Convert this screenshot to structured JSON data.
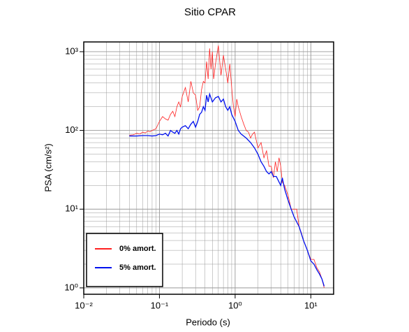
{
  "chart_data": {
    "type": "line",
    "title": "Sitio CPAR",
    "x_label": "Periodo (s)",
    "y_label": "PSA (cm/s²)",
    "log_x": true,
    "log_y": true,
    "grid": true,
    "minor_grid": true,
    "legend": "lower left",
    "xlim": [
      0.01,
      20
    ],
    "ylim": [
      0.83,
      1330
    ],
    "xticks": [
      {
        "value": 0.01,
        "label": "10⁻²"
      },
      {
        "value": 0.1,
        "label": "10⁻¹"
      },
      {
        "value": 1,
        "label": "10⁰"
      },
      {
        "value": 10,
        "label": "10¹"
      }
    ],
    "yticks": [
      {
        "value": 1,
        "label": "10⁰"
      },
      {
        "value": 10,
        "label": "10¹"
      },
      {
        "value": 100,
        "label": "10²"
      },
      {
        "value": 1000,
        "label": "10³"
      }
    ],
    "series": [
      {
        "name": "0% amort.",
        "color": "#ff2020",
        "x": [
          0.04,
          0.045,
          0.05,
          0.055,
          0.06,
          0.065,
          0.07,
          0.075,
          0.08,
          0.09,
          0.1,
          0.11,
          0.12,
          0.13,
          0.14,
          0.15,
          0.16,
          0.17,
          0.18,
          0.19,
          0.2,
          0.22,
          0.24,
          0.26,
          0.28,
          0.3,
          0.32,
          0.34,
          0.36,
          0.38,
          0.4,
          0.42,
          0.44,
          0.46,
          0.48,
          0.5,
          0.52,
          0.55,
          0.6,
          0.65,
          0.7,
          0.75,
          0.8,
          0.85,
          0.9,
          0.95,
          1.0,
          1.05,
          1.1,
          1.2,
          1.3,
          1.4,
          1.5,
          1.6,
          1.7,
          1.8,
          1.9,
          2.0,
          2.2,
          2.4,
          2.6,
          2.8,
          3.0,
          3.2,
          3.4,
          3.6,
          3.8,
          4.0,
          4.2,
          4.5,
          5.0,
          5.5,
          6.0,
          6.5,
          7,
          7.5,
          8,
          9,
          10,
          11,
          12,
          13,
          14,
          15
        ],
        "values": [
          87,
          88,
          92,
          90,
          95,
          93,
          98,
          96,
          100,
          105,
          130,
          150,
          140,
          135,
          160,
          175,
          150,
          200,
          230,
          200,
          270,
          350,
          230,
          420,
          300,
          280,
          180,
          200,
          330,
          420,
          400,
          750,
          450,
          1100,
          600,
          1000,
          450,
          700,
          1200,
          500,
          900,
          600,
          400,
          700,
          350,
          200,
          150,
          250,
          200,
          150,
          120,
          100,
          95,
          80,
          90,
          95,
          75,
          60,
          70,
          45,
          55,
          35,
          35,
          25,
          40,
          30,
          45,
          35,
          22,
          20,
          15,
          10,
          10,
          10,
          6,
          5,
          4,
          3,
          2.3,
          2.3,
          1.8,
          1.6,
          1.3,
          1.0
        ]
      },
      {
        "name": "5% amort.",
        "color": "#0010ee",
        "x": [
          0.04,
          0.05,
          0.06,
          0.07,
          0.08,
          0.09,
          0.1,
          0.11,
          0.12,
          0.13,
          0.14,
          0.15,
          0.16,
          0.17,
          0.18,
          0.19,
          0.2,
          0.22,
          0.24,
          0.26,
          0.28,
          0.3,
          0.32,
          0.34,
          0.36,
          0.38,
          0.4,
          0.42,
          0.44,
          0.46,
          0.5,
          0.55,
          0.6,
          0.65,
          0.7,
          0.75,
          0.8,
          0.85,
          0.9,
          1.0,
          1.1,
          1.2,
          1.4,
          1.6,
          1.8,
          2.0,
          2.2,
          2.4,
          2.6,
          2.8,
          3.0,
          3.2,
          3.5,
          4.0,
          4.2,
          4.5,
          5,
          5.5,
          6,
          7,
          8,
          9,
          10,
          11,
          12,
          13,
          14,
          15
        ],
        "values": [
          85,
          85,
          86,
          86,
          85,
          86,
          90,
          88,
          92,
          85,
          100,
          95,
          92,
          100,
          90,
          105,
          110,
          115,
          105,
          120,
          130,
          110,
          130,
          160,
          170,
          200,
          180,
          280,
          230,
          290,
          230,
          260,
          270,
          230,
          250,
          200,
          180,
          200,
          160,
          130,
          100,
          90,
          80,
          70,
          60,
          50,
          40,
          35,
          30,
          28,
          30,
          26,
          26,
          20,
          25,
          18,
          13,
          10,
          8,
          6,
          4,
          3,
          2.2,
          2.0,
          1.7,
          1.5,
          1.3,
          1.05
        ]
      }
    ]
  }
}
